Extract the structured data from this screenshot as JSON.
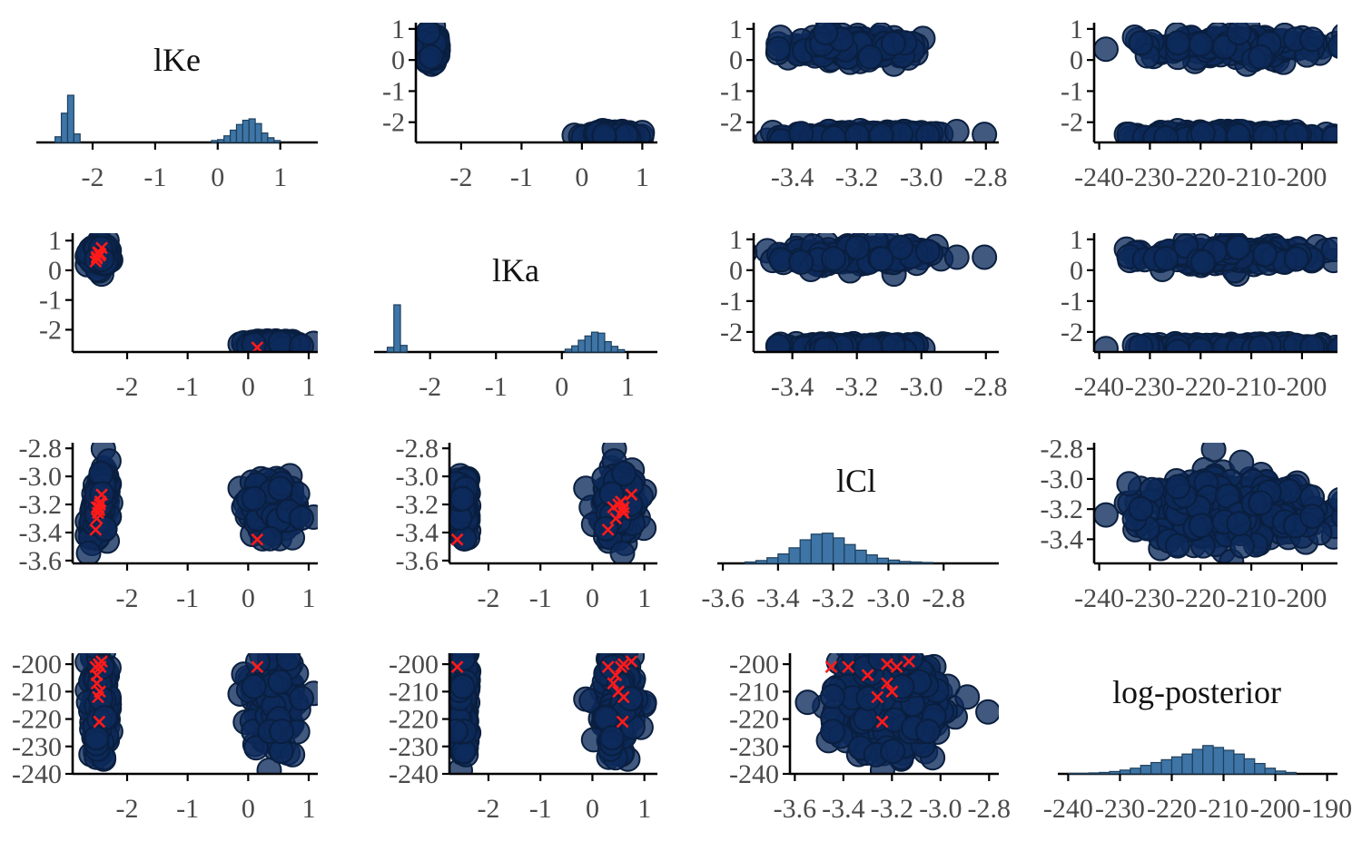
{
  "colors": {
    "point_fill": "#0d2a5b",
    "point_stroke": "#0a1f3f",
    "hist_fill": "#3e75a6",
    "hist_stroke": "#1e3f5c",
    "cross": "#ff1a1a",
    "axis": "#000000",
    "tick_text": "#4a4a4a"
  },
  "chart_data": {
    "type": "scatter",
    "layout": "pairs-matrix",
    "parameters": [
      "lKe",
      "lKa",
      "lCl",
      "log-posterior"
    ],
    "diagonal_titles": [
      "lKe",
      "lKa",
      "lCl",
      "log-posterior"
    ],
    "axes": {
      "lKe": {
        "range": [
          -2.9,
          1.15
        ],
        "ticks": [
          -2,
          -1,
          0,
          1
        ],
        "tick_labels": [
          "-2",
          "-1",
          "0",
          "1"
        ]
      },
      "lKa": {
        "range": [
          -2.75,
          1.25
        ],
        "ticks": [
          -2,
          -1,
          0,
          1
        ],
        "tick_labels": [
          "-2",
          "-1",
          "0",
          "1"
        ]
      },
      "lCl": {
        "range": [
          -3.62,
          -2.76
        ],
        "ticks": [
          -3.6,
          -3.4,
          -3.2,
          -3.0,
          -2.8
        ],
        "tick_labels": [
          "-3.6",
          "-3.4",
          "-3.2",
          "-3.0",
          "-2.8"
        ]
      },
      "log-posterior": {
        "range": [
          -240,
          -196
        ],
        "ticks": [
          -240,
          -230,
          -220,
          -210,
          -200
        ],
        "tick_labels": [
          "-240",
          "-230",
          "-220",
          "-210",
          "-200"
        ]
      }
    },
    "diagonal_axes": [
      {
        "range": [
          -2.9,
          1.6
        ],
        "ticks": [
          -2,
          -1,
          0,
          1
        ],
        "tick_labels": [
          "-2",
          "-1",
          "0",
          "1"
        ]
      },
      {
        "range": [
          -2.85,
          1.45
        ],
        "ticks": [
          -2,
          -1,
          0,
          1
        ],
        "tick_labels": [
          "-2",
          "-1",
          "0",
          "1"
        ]
      },
      {
        "range": [
          -3.62,
          -2.6
        ],
        "ticks": [
          -3.6,
          -3.4,
          -3.2,
          -3.0,
          -2.8
        ],
        "tick_labels": [
          "-3.6",
          "-3.4",
          "-3.2",
          "-3.0",
          "-2.8"
        ]
      },
      {
        "range": [
          -242,
          -188
        ],
        "ticks": [
          -240,
          -230,
          -220,
          -210,
          -200,
          -190
        ],
        "tick_labels": [
          "-240",
          "-230",
          "-220",
          "-210",
          "-200",
          "-190"
        ]
      }
    ],
    "upper_axes": {
      "y_lKe_lKa": {
        "range": [
          -2.65,
          1.2
        ],
        "ticks": [
          -2,
          -1,
          0,
          1
        ],
        "tick_labels": [
          "-2",
          "-1",
          "0",
          "1"
        ]
      },
      "x_lCl": {
        "range": [
          -3.52,
          -2.76
        ],
        "ticks": [
          -3.4,
          -3.2,
          -3.0,
          -2.8
        ],
        "tick_labels": [
          "-3.4",
          "-3.2",
          "-3.0",
          "-2.8"
        ]
      },
      "x_logpost": {
        "range": [
          -241,
          -193
        ],
        "ticks": [
          -240,
          -230,
          -220,
          -210,
          -200
        ],
        "tick_labels": [
          "-240",
          "-230",
          "-220",
          "-210",
          "-200"
        ]
      },
      "y_lCl": {
        "range": [
          -3.56,
          -2.76
        ],
        "ticks": [
          -3.4,
          -3.2,
          -3.0,
          -2.8
        ],
        "tick_labels": [
          "-3.4",
          "-3.2",
          "-3.0",
          "-2.8"
        ]
      }
    },
    "marginal_histograms": {
      "lKe": {
        "bin_edges": [
          -2.6,
          -2.5,
          -2.4,
          -2.3,
          -2.2,
          -0.1,
          0.0,
          0.1,
          0.2,
          0.3,
          0.4,
          0.5,
          0.6,
          0.7,
          0.8,
          0.9,
          1.0
        ],
        "bins": [
          {
            "lo": -2.6,
            "hi": -2.5,
            "count": 0.12
          },
          {
            "lo": -2.5,
            "hi": -2.4,
            "count": 0.62
          },
          {
            "lo": -2.4,
            "hi": -2.3,
            "count": 1.0
          },
          {
            "lo": -2.3,
            "hi": -2.2,
            "count": 0.18
          },
          {
            "lo": -0.1,
            "hi": 0.0,
            "count": 0.04
          },
          {
            "lo": 0.0,
            "hi": 0.1,
            "count": 0.06
          },
          {
            "lo": 0.1,
            "hi": 0.2,
            "count": 0.14
          },
          {
            "lo": 0.2,
            "hi": 0.3,
            "count": 0.26
          },
          {
            "lo": 0.3,
            "hi": 0.4,
            "count": 0.38
          },
          {
            "lo": 0.4,
            "hi": 0.5,
            "count": 0.47
          },
          {
            "lo": 0.5,
            "hi": 0.6,
            "count": 0.5
          },
          {
            "lo": 0.6,
            "hi": 0.7,
            "count": 0.4
          },
          {
            "lo": 0.7,
            "hi": 0.8,
            "count": 0.2
          },
          {
            "lo": 0.8,
            "hi": 0.9,
            "count": 0.1
          },
          {
            "lo": 0.9,
            "hi": 1.0,
            "count": 0.04
          }
        ]
      },
      "lKa": {
        "bins": [
          {
            "lo": -2.65,
            "hi": -2.55,
            "count": 0.1
          },
          {
            "lo": -2.55,
            "hi": -2.45,
            "count": 1.0
          },
          {
            "lo": -2.45,
            "hi": -2.35,
            "count": 0.14
          },
          {
            "lo": 0.05,
            "hi": 0.15,
            "count": 0.06
          },
          {
            "lo": 0.15,
            "hi": 0.25,
            "count": 0.13
          },
          {
            "lo": 0.25,
            "hi": 0.35,
            "count": 0.25
          },
          {
            "lo": 0.35,
            "hi": 0.45,
            "count": 0.34
          },
          {
            "lo": 0.45,
            "hi": 0.55,
            "count": 0.42
          },
          {
            "lo": 0.55,
            "hi": 0.65,
            "count": 0.4
          },
          {
            "lo": 0.65,
            "hi": 0.75,
            "count": 0.22
          },
          {
            "lo": 0.75,
            "hi": 0.85,
            "count": 0.12
          },
          {
            "lo": 0.85,
            "hi": 0.95,
            "count": 0.05
          }
        ]
      },
      "lCl": {
        "bins": [
          {
            "lo": -3.52,
            "hi": -3.48,
            "count": 0.03
          },
          {
            "lo": -3.48,
            "hi": -3.44,
            "count": 0.06
          },
          {
            "lo": -3.44,
            "hi": -3.4,
            "count": 0.12
          },
          {
            "lo": -3.4,
            "hi": -3.36,
            "count": 0.2
          },
          {
            "lo": -3.36,
            "hi": -3.32,
            "count": 0.33
          },
          {
            "lo": -3.32,
            "hi": -3.28,
            "count": 0.5
          },
          {
            "lo": -3.28,
            "hi": -3.24,
            "count": 0.62
          },
          {
            "lo": -3.24,
            "hi": -3.2,
            "count": 0.64
          },
          {
            "lo": -3.2,
            "hi": -3.16,
            "count": 0.54
          },
          {
            "lo": -3.16,
            "hi": -3.12,
            "count": 0.4
          },
          {
            "lo": -3.12,
            "hi": -3.08,
            "count": 0.28
          },
          {
            "lo": -3.08,
            "hi": -3.04,
            "count": 0.18
          },
          {
            "lo": -3.04,
            "hi": -3.0,
            "count": 0.11
          },
          {
            "lo": -3.0,
            "hi": -2.96,
            "count": 0.07
          },
          {
            "lo": -2.96,
            "hi": -2.92,
            "count": 0.04
          },
          {
            "lo": -2.92,
            "hi": -2.88,
            "count": 0.03
          },
          {
            "lo": -2.88,
            "hi": -2.84,
            "count": 0.02
          }
        ]
      },
      "log-posterior": {
        "bins": [
          {
            "lo": -240,
            "hi": -238,
            "count": 0.01
          },
          {
            "lo": -238,
            "hi": -236,
            "count": 0.01
          },
          {
            "lo": -236,
            "hi": -234,
            "count": 0.02
          },
          {
            "lo": -234,
            "hi": -232,
            "count": 0.03
          },
          {
            "lo": -232,
            "hi": -230,
            "count": 0.05
          },
          {
            "lo": -230,
            "hi": -228,
            "count": 0.08
          },
          {
            "lo": -228,
            "hi": -226,
            "count": 0.12
          },
          {
            "lo": -226,
            "hi": -224,
            "count": 0.18
          },
          {
            "lo": -224,
            "hi": -222,
            "count": 0.24
          },
          {
            "lo": -222,
            "hi": -220,
            "count": 0.3
          },
          {
            "lo": -220,
            "hi": -218,
            "count": 0.36
          },
          {
            "lo": -218,
            "hi": -216,
            "count": 0.42
          },
          {
            "lo": -216,
            "hi": -214,
            "count": 0.52
          },
          {
            "lo": -214,
            "hi": -212,
            "count": 0.6
          },
          {
            "lo": -212,
            "hi": -210,
            "count": 0.56
          },
          {
            "lo": -210,
            "hi": -208,
            "count": 0.5
          },
          {
            "lo": -208,
            "hi": -206,
            "count": 0.42
          },
          {
            "lo": -206,
            "hi": -204,
            "count": 0.32
          },
          {
            "lo": -204,
            "hi": -202,
            "count": 0.22
          },
          {
            "lo": -202,
            "hi": -200,
            "count": 0.12
          },
          {
            "lo": -200,
            "hi": -198,
            "count": 0.06
          },
          {
            "lo": -198,
            "hi": -196,
            "count": 0.03
          }
        ]
      }
    },
    "sample_clusters": [
      {
        "lKe": {
          "mean": -2.45,
          "sd": 0.06
        },
        "lKa": {
          "mean": 0.5,
          "sd": 0.18
        },
        "lCl": {
          "mean": -3.2,
          "sd": 0.12
        },
        "log-posterior": {
          "mean": -214,
          "sd": 9
        },
        "weight": 0.5
      },
      {
        "lKe": {
          "mean": 0.45,
          "sd": 0.2
        },
        "lKa": {
          "mean": -2.5,
          "sd": 0.05
        },
        "lCl": {
          "mean": -3.22,
          "sd": 0.1
        },
        "log-posterior": {
          "mean": -213,
          "sd": 9
        },
        "weight": 0.5
      }
    ],
    "starting_points": [
      {
        "lKe": -2.47,
        "lKa": 0.6,
        "lCl": -3.22,
        "log-posterior": -200
      },
      {
        "lKe": -2.5,
        "lKa": 0.45,
        "lCl": -3.3,
        "log-posterior": -204
      },
      {
        "lKe": -2.44,
        "lKa": 0.55,
        "lCl": -3.18,
        "log-posterior": -201
      },
      {
        "lKe": -2.52,
        "lKa": 0.3,
        "lCl": -3.38,
        "log-posterior": -201
      },
      {
        "lKe": -2.42,
        "lKa": 0.75,
        "lCl": -3.13,
        "log-posterior": -199
      },
      {
        "lKe": -2.48,
        "lKa": 0.6,
        "lCl": -3.26,
        "log-posterior": -212
      },
      {
        "lKe": -2.46,
        "lKa": 0.58,
        "lCl": -3.24,
        "log-posterior": -221
      },
      {
        "lKe": -2.5,
        "lKa": 0.4,
        "lCl": -3.22,
        "log-posterior": -207
      },
      {
        "lKe": -2.45,
        "lKa": 0.5,
        "lCl": -3.2,
        "log-posterior": -210
      },
      {
        "lKe": 0.15,
        "lKa": -2.6,
        "lCl": -3.45,
        "log-posterior": -201
      }
    ],
    "grid": false,
    "legend": "none"
  }
}
